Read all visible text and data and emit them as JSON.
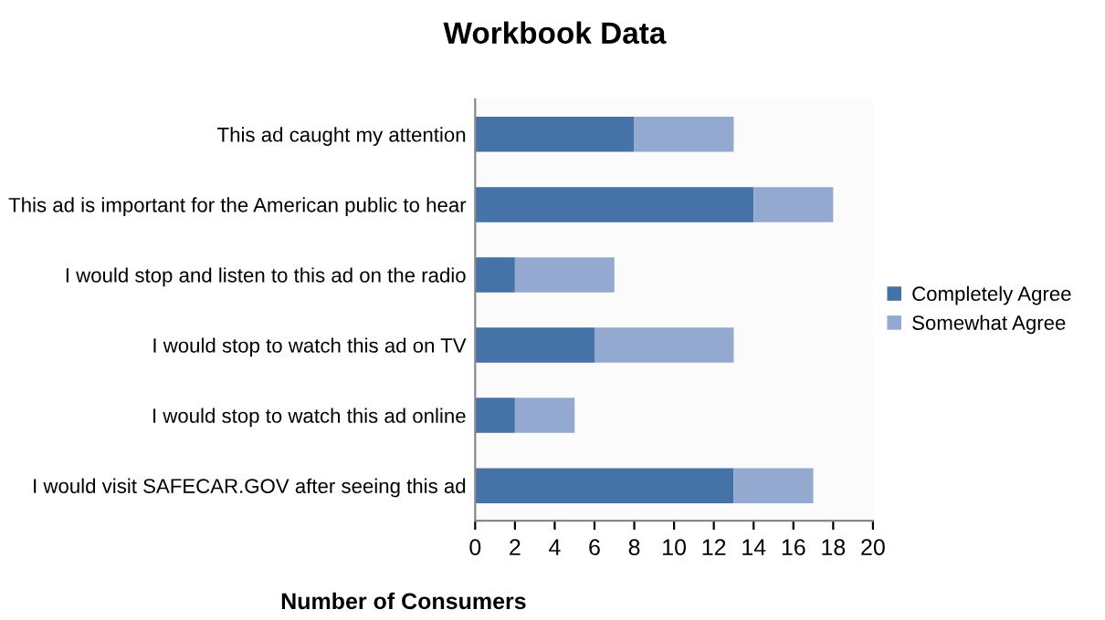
{
  "chart_data": {
    "type": "bar",
    "orientation": "horizontal",
    "stacked": true,
    "title": "Workbook Data",
    "xlabel": "Number of Consumers",
    "categories": [
      "This ad caught my attention",
      "This ad is important for the American public to hear",
      "I would stop and listen to this ad on the radio",
      "I would stop to watch this ad on TV",
      "I would stop to watch this ad online",
      "I would visit SAFECAR.GOV after seeing this ad"
    ],
    "series": [
      {
        "name": "Completely Agree",
        "color": "#4572a7",
        "values": [
          8,
          14,
          2,
          6,
          2,
          13
        ]
      },
      {
        "name": "Somewhat Agree",
        "color": "#93a9cf",
        "values": [
          5,
          4,
          5,
          7,
          3,
          4
        ]
      }
    ],
    "xlim": [
      0,
      20
    ],
    "xticks": [
      0,
      2,
      4,
      6,
      8,
      10,
      12,
      14,
      16,
      18,
      20
    ],
    "grid": false,
    "legend": "right"
  }
}
